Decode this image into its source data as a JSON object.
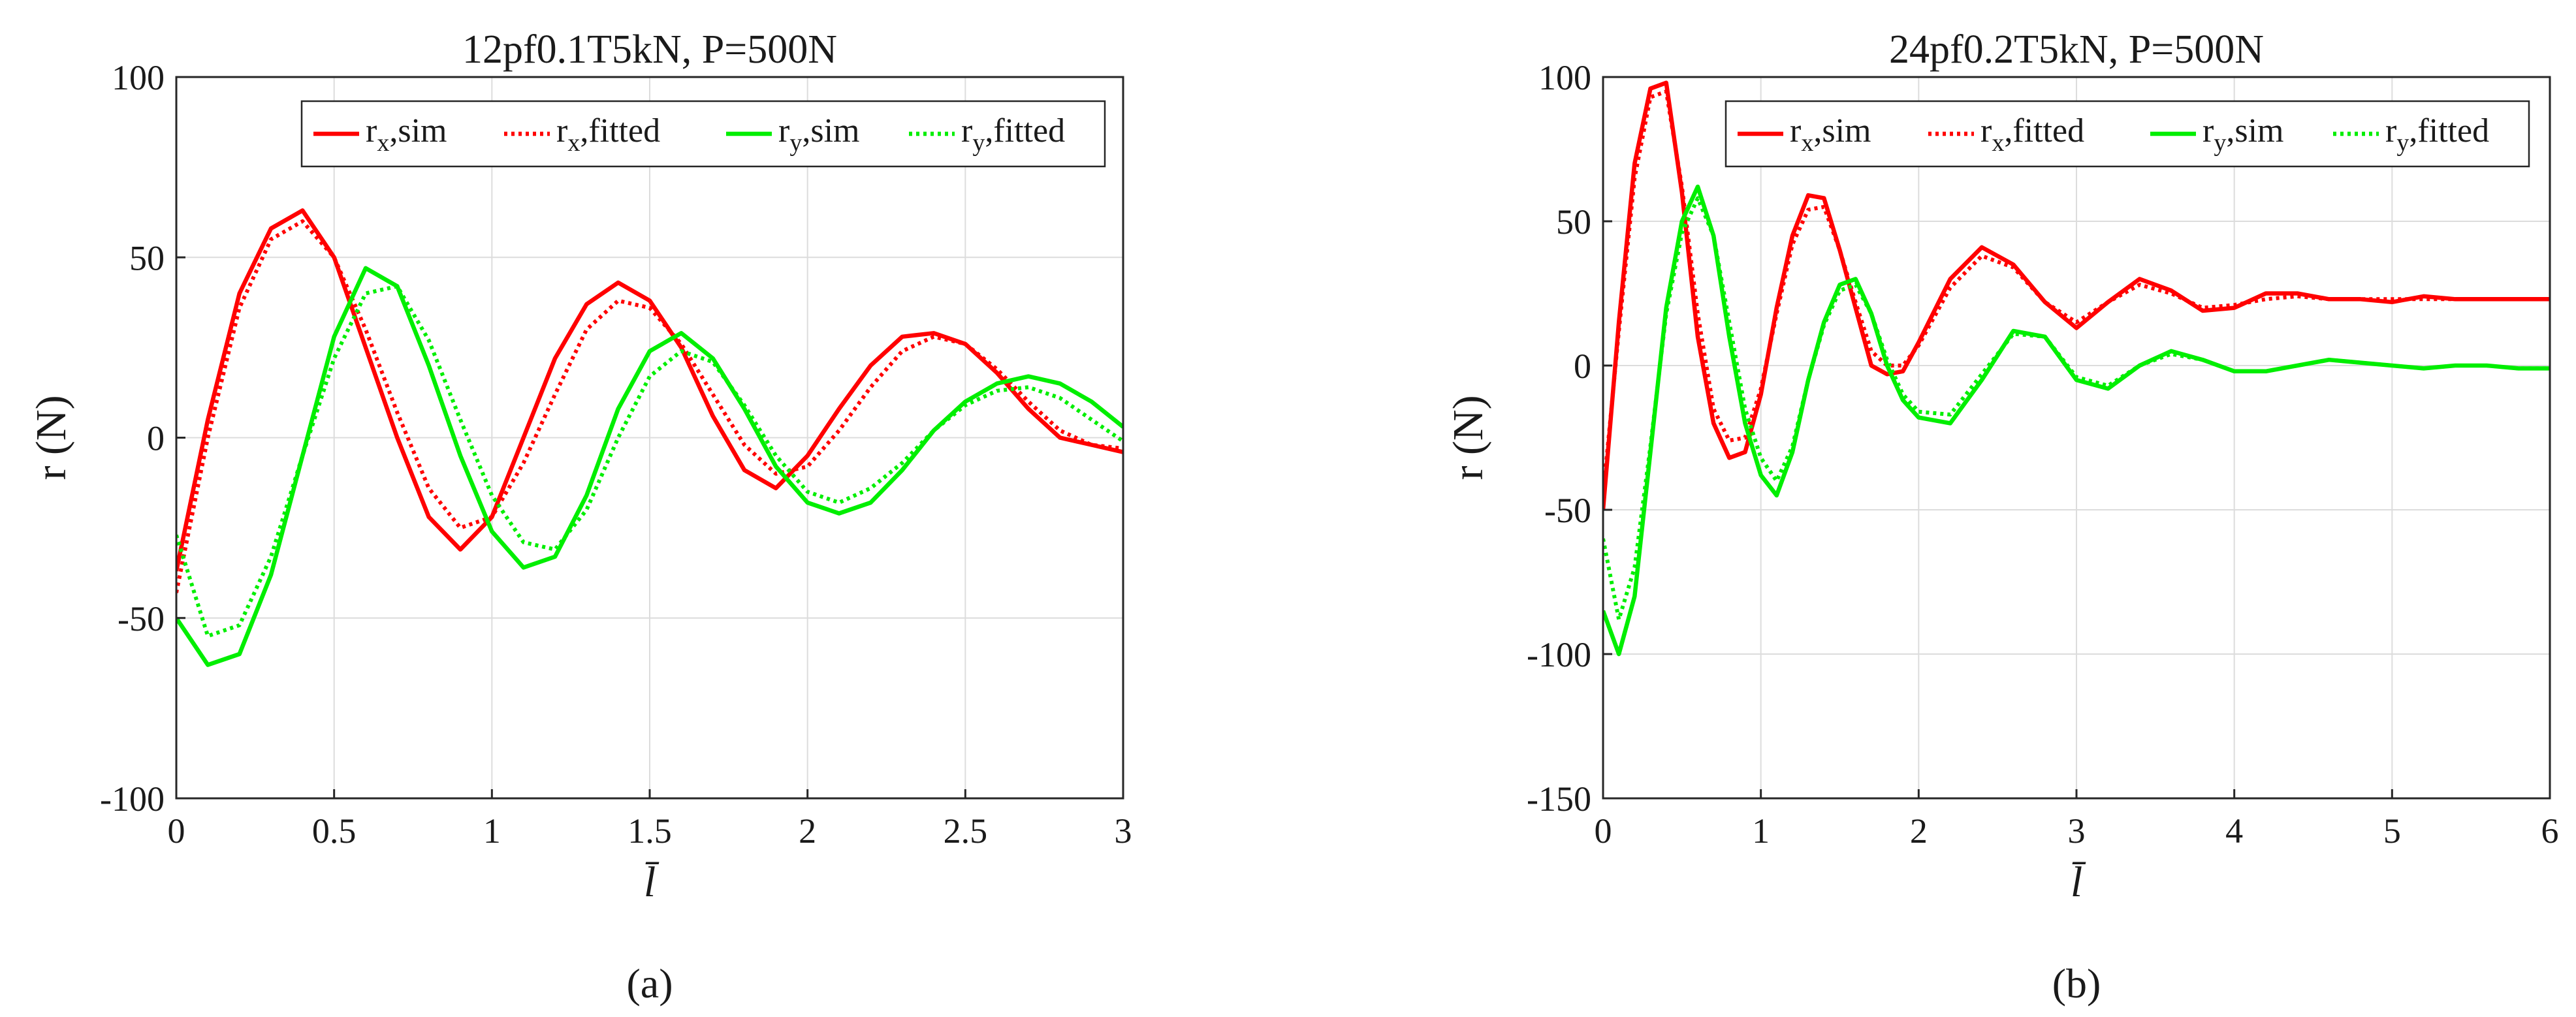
{
  "chart_data": [
    {
      "type": "line",
      "panel_label": "(a)",
      "title": "12pf0.1T5kN, P=500N",
      "xlabel": "l̄",
      "ylabel": "r (N)",
      "xlim": [
        0,
        3
      ],
      "ylim": [
        -100,
        100
      ],
      "xticks": [
        0,
        0.5,
        1,
        1.5,
        2,
        2.5,
        3
      ],
      "xtick_labels": [
        "0",
        "0.5",
        "1",
        "1.5",
        "2",
        "2.5",
        "3"
      ],
      "yticks": [
        -100,
        -50,
        0,
        50,
        100
      ],
      "ytick_labels": [
        "-100",
        "-50",
        "0",
        "50",
        "100"
      ],
      "grid": true,
      "legend_position": "top-right",
      "series": [
        {
          "name": "r_x,sim",
          "label": "r",
          "sub": "x",
          "suffix": ",sim",
          "color": "#ff0000",
          "style": "solid",
          "x": [
            0,
            0.1,
            0.2,
            0.3,
            0.4,
            0.5,
            0.6,
            0.7,
            0.8,
            0.9,
            1.0,
            1.1,
            1.2,
            1.3,
            1.4,
            1.5,
            1.6,
            1.7,
            1.8,
            1.9,
            2.0,
            2.1,
            2.2,
            2.3,
            2.4,
            2.5,
            2.6,
            2.7,
            2.8,
            2.9,
            3.0
          ],
          "y": [
            -37,
            5,
            40,
            58,
            63,
            50,
            25,
            0,
            -22,
            -31,
            -22,
            0,
            22,
            37,
            43,
            38,
            25,
            6,
            -9,
            -14,
            -5,
            8,
            20,
            28,
            29,
            26,
            18,
            8,
            0,
            -2,
            -4
          ]
        },
        {
          "name": "r_x,fitted",
          "label": "r",
          "sub": "x",
          "suffix": ",fitted",
          "color": "#ff0000",
          "style": "dotted",
          "x": [
            0,
            0.1,
            0.2,
            0.3,
            0.4,
            0.5,
            0.6,
            0.7,
            0.8,
            0.9,
            1.0,
            1.1,
            1.2,
            1.3,
            1.4,
            1.5,
            1.6,
            1.7,
            1.8,
            1.9,
            2.0,
            2.1,
            2.2,
            2.3,
            2.4,
            2.5,
            2.6,
            2.7,
            2.8,
            2.9,
            3.0
          ],
          "y": [
            -43,
            0,
            36,
            55,
            60,
            50,
            30,
            7,
            -14,
            -25,
            -22,
            -7,
            12,
            30,
            38,
            36,
            26,
            12,
            -2,
            -10,
            -8,
            2,
            14,
            24,
            28,
            26,
            19,
            10,
            2,
            -2,
            -3
          ]
        },
        {
          "name": "r_y,sim",
          "label": "r",
          "sub": "y",
          "suffix": ",sim",
          "color": "#00ee00",
          "style": "solid",
          "x": [
            0,
            0.1,
            0.2,
            0.3,
            0.4,
            0.5,
            0.6,
            0.7,
            0.8,
            0.9,
            1.0,
            1.1,
            1.2,
            1.3,
            1.4,
            1.5,
            1.6,
            1.7,
            1.8,
            1.9,
            2.0,
            2.1,
            2.2,
            2.3,
            2.4,
            2.5,
            2.6,
            2.7,
            2.8,
            2.9,
            3.0
          ],
          "y": [
            -50,
            -63,
            -60,
            -38,
            -5,
            28,
            47,
            42,
            20,
            -5,
            -26,
            -36,
            -33,
            -16,
            8,
            24,
            29,
            22,
            8,
            -8,
            -18,
            -21,
            -18,
            -9,
            2,
            10,
            15,
            17,
            15,
            10,
            3
          ]
        },
        {
          "name": "r_y,fitted",
          "label": "r",
          "sub": "y",
          "suffix": ",fitted",
          "color": "#00ee00",
          "style": "dotted",
          "x": [
            0,
            0.1,
            0.2,
            0.3,
            0.4,
            0.5,
            0.6,
            0.7,
            0.8,
            0.9,
            1.0,
            1.1,
            1.2,
            1.3,
            1.4,
            1.5,
            1.6,
            1.7,
            1.8,
            1.9,
            2.0,
            2.1,
            2.2,
            2.3,
            2.4,
            2.5,
            2.6,
            2.7,
            2.8,
            2.9,
            3.0
          ],
          "y": [
            -27,
            -55,
            -52,
            -33,
            -5,
            22,
            40,
            42,
            27,
            5,
            -16,
            -29,
            -31,
            -20,
            0,
            17,
            24,
            21,
            9,
            -5,
            -15,
            -18,
            -14,
            -7,
            2,
            9,
            13,
            14,
            11,
            5,
            -1
          ]
        }
      ]
    },
    {
      "type": "line",
      "panel_label": "(b)",
      "title": "24pf0.2T5kN, P=500N",
      "xlabel": "l̄",
      "ylabel": "r (N)",
      "xlim": [
        0,
        6
      ],
      "ylim": [
        -150,
        100
      ],
      "xticks": [
        0,
        1,
        2,
        3,
        4,
        5,
        6
      ],
      "xtick_labels": [
        "0",
        "1",
        "2",
        "3",
        "4",
        "5",
        "6"
      ],
      "yticks": [
        -150,
        -100,
        -50,
        0,
        50,
        100
      ],
      "ytick_labels": [
        "-150",
        "-100",
        "-50",
        "0",
        "50",
        "100"
      ],
      "grid": true,
      "legend_position": "top-right",
      "series": [
        {
          "name": "r_x,sim",
          "label": "r",
          "sub": "x",
          "suffix": ",sim",
          "color": "#ff0000",
          "style": "solid",
          "x": [
            0,
            0.1,
            0.2,
            0.3,
            0.4,
            0.5,
            0.6,
            0.7,
            0.8,
            0.9,
            1.0,
            1.1,
            1.2,
            1.3,
            1.4,
            1.5,
            1.6,
            1.7,
            1.8,
            1.9,
            2.0,
            2.2,
            2.4,
            2.6,
            2.8,
            3.0,
            3.2,
            3.4,
            3.6,
            3.8,
            4.0,
            4.2,
            4.4,
            4.6,
            4.8,
            5.0,
            5.2,
            5.4,
            5.6,
            5.8,
            6.0
          ],
          "y": [
            -50,
            15,
            70,
            96,
            98,
            60,
            10,
            -20,
            -32,
            -30,
            -10,
            20,
            45,
            59,
            58,
            40,
            20,
            0,
            -3,
            -2,
            8,
            30,
            41,
            35,
            22,
            13,
            22,
            30,
            26,
            19,
            20,
            25,
            25,
            23,
            23,
            22,
            24,
            23,
            23,
            23,
            23
          ]
        },
        {
          "name": "r_x,fitted",
          "label": "r",
          "sub": "x",
          "suffix": ",fitted",
          "color": "#ff0000",
          "style": "dotted",
          "x": [
            0,
            0.1,
            0.2,
            0.3,
            0.4,
            0.5,
            0.6,
            0.7,
            0.8,
            0.9,
            1.0,
            1.1,
            1.2,
            1.3,
            1.4,
            1.5,
            1.6,
            1.7,
            1.8,
            1.9,
            2.0,
            2.2,
            2.4,
            2.6,
            2.8,
            3.0,
            3.2,
            3.4,
            3.6,
            3.8,
            4.0,
            4.2,
            4.4,
            4.6,
            4.8,
            5.0,
            5.2,
            5.4,
            5.6,
            5.8,
            6.0
          ],
          "y": [
            -45,
            12,
            65,
            93,
            95,
            62,
            18,
            -15,
            -26,
            -25,
            -8,
            18,
            42,
            54,
            55,
            40,
            22,
            5,
            0,
            0,
            7,
            27,
            38,
            34,
            22,
            15,
            22,
            28,
            25,
            20,
            21,
            23,
            24,
            23,
            23,
            23,
            23,
            23,
            23,
            23,
            23
          ]
        },
        {
          "name": "r_y,sim",
          "label": "r",
          "sub": "y",
          "suffix": ",sim",
          "color": "#00ee00",
          "style": "solid",
          "x": [
            0,
            0.1,
            0.2,
            0.3,
            0.4,
            0.5,
            0.6,
            0.7,
            0.8,
            0.9,
            1.0,
            1.1,
            1.2,
            1.3,
            1.4,
            1.5,
            1.6,
            1.7,
            1.8,
            1.9,
            2.0,
            2.2,
            2.4,
            2.6,
            2.8,
            3.0,
            3.2,
            3.4,
            3.6,
            3.8,
            4.0,
            4.2,
            4.4,
            4.6,
            4.8,
            5.0,
            5.2,
            5.4,
            5.6,
            5.8,
            6.0
          ],
          "y": [
            -85,
            -100,
            -80,
            -30,
            20,
            50,
            62,
            45,
            10,
            -20,
            -38,
            -45,
            -30,
            -5,
            15,
            28,
            30,
            18,
            0,
            -12,
            -18,
            -20,
            -5,
            12,
            10,
            -5,
            -8,
            0,
            5,
            2,
            -2,
            -2,
            0,
            2,
            1,
            0,
            -1,
            0,
            0,
            -1,
            -1
          ]
        },
        {
          "name": "r_y,fitted",
          "label": "r",
          "sub": "y",
          "suffix": ",fitted",
          "color": "#00ee00",
          "style": "dotted",
          "x": [
            0,
            0.1,
            0.2,
            0.3,
            0.4,
            0.5,
            0.6,
            0.7,
            0.8,
            0.9,
            1.0,
            1.1,
            1.2,
            1.3,
            1.4,
            1.5,
            1.6,
            1.7,
            1.8,
            1.9,
            2.0,
            2.2,
            2.4,
            2.6,
            2.8,
            3.0,
            3.2,
            3.4,
            3.6,
            3.8,
            4.0,
            4.2,
            4.4,
            4.6,
            4.8,
            5.0,
            5.2,
            5.4,
            5.6,
            5.8,
            6.0
          ],
          "y": [
            -60,
            -88,
            -70,
            -28,
            18,
            46,
            58,
            45,
            15,
            -15,
            -32,
            -40,
            -28,
            -5,
            14,
            26,
            28,
            18,
            2,
            -10,
            -16,
            -17,
            -3,
            11,
            10,
            -4,
            -7,
            0,
            4,
            2,
            -2,
            -2,
            0,
            2,
            1,
            0,
            -1,
            0,
            0,
            -1,
            -1
          ]
        }
      ]
    }
  ]
}
